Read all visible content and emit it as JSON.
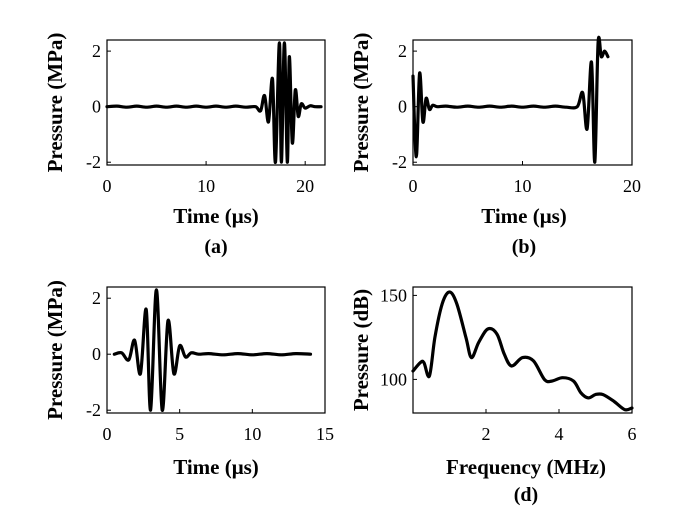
{
  "chart_data": [
    {
      "panel": "a",
      "type": "line",
      "caption": "(a)",
      "xlabel": "Time (μs)",
      "ylabel": "Pressure (MPa)",
      "xlim": [
        0,
        22
      ],
      "ylim": [
        -2.1,
        2.4
      ],
      "xticks": [
        0,
        10,
        20
      ],
      "xtick_labels": [
        "0",
        "10",
        "20"
      ],
      "yticks": [
        2,
        0,
        -2
      ],
      "ytick_labels": [
        "2",
        "0",
        "-2"
      ],
      "grid": false,
      "series": [
        {
          "x": [
            0,
            1,
            2,
            3,
            4,
            5,
            6,
            7,
            8,
            9,
            10,
            11,
            12,
            13,
            14,
            15,
            15.5,
            15.9,
            16.3,
            16.7,
            17.0,
            17.4,
            17.6,
            17.9,
            18.2,
            18.4,
            18.7,
            19.0,
            19.3,
            19.6,
            20.0,
            20.5,
            21.0,
            21.6
          ],
          "y": [
            0,
            0.02,
            -0.02,
            0.02,
            -0.02,
            0.02,
            -0.02,
            0.02,
            -0.02,
            0.02,
            -0.02,
            0.02,
            -0.02,
            0.02,
            -0.02,
            0.0,
            -0.15,
            0.4,
            -0.55,
            1.0,
            -2.0,
            2.3,
            -2.0,
            2.3,
            -2.0,
            1.8,
            -1.3,
            0.6,
            -0.35,
            0.1,
            -0.05,
            0.03,
            0.0,
            0.0
          ]
        }
      ]
    },
    {
      "panel": "b",
      "type": "line",
      "caption": "(b)",
      "xlabel": "Time (μs)",
      "ylabel": "Pressure (MPa)",
      "xlim": [
        0,
        20
      ],
      "ylim": [
        -2.1,
        2.4
      ],
      "xticks": [
        0,
        10,
        20
      ],
      "xtick_labels": [
        "0",
        "10",
        "20"
      ],
      "yticks": [
        2,
        0,
        -2
      ],
      "ytick_labels": [
        "2",
        "0",
        "-2"
      ],
      "grid": false,
      "series": [
        {
          "x": [
            0,
            0.3,
            0.6,
            0.9,
            1.2,
            1.5,
            1.8,
            2.2,
            3,
            4,
            5,
            6,
            7,
            8,
            9,
            10,
            11,
            12,
            13,
            14,
            15,
            15.5,
            15.9,
            16.3,
            16.6,
            16.9,
            17.2,
            17.5,
            17.8
          ],
          "y": [
            1.1,
            -1.8,
            1.2,
            -0.55,
            0.3,
            -0.1,
            0.05,
            0.0,
            0.02,
            -0.02,
            0.02,
            -0.02,
            0.02,
            -0.02,
            0.02,
            -0.02,
            0.02,
            -0.02,
            0.02,
            -0.02,
            0.0,
            0.5,
            -0.8,
            1.6,
            -2.0,
            2.3,
            1.8,
            2.0,
            1.8
          ]
        }
      ]
    },
    {
      "panel": "c",
      "type": "line",
      "caption": "",
      "xlabel": "Time (μs)",
      "ylabel": "Pressure (MPa)",
      "xlim": [
        0,
        15
      ],
      "ylim": [
        -2.1,
        2.4
      ],
      "xticks": [
        0,
        5,
        10,
        15
      ],
      "xtick_labels": [
        "0",
        "5",
        "10",
        "15"
      ],
      "yticks": [
        2,
        0,
        -2
      ],
      "ytick_labels": [
        "2",
        "0",
        "-2"
      ],
      "grid": false,
      "series": [
        {
          "x": [
            0.5,
            1.0,
            1.5,
            1.9,
            2.3,
            2.7,
            3.0,
            3.4,
            3.8,
            4.2,
            4.6,
            5.0,
            5.4,
            5.8,
            6.3,
            7,
            8,
            9,
            10,
            11,
            12,
            13,
            14
          ],
          "y": [
            0.0,
            0.05,
            -0.2,
            0.5,
            -0.7,
            1.6,
            -2.0,
            2.3,
            -2.0,
            1.2,
            -0.7,
            0.3,
            -0.1,
            0.05,
            0.0,
            0.02,
            -0.02,
            0.02,
            -0.02,
            0.02,
            -0.02,
            0.02,
            0.0
          ]
        }
      ]
    },
    {
      "panel": "d",
      "type": "line",
      "caption": "(d)",
      "xlabel": "Frequency (MHz)",
      "ylabel": "Pressure (dB)",
      "xlim": [
        0,
        6
      ],
      "ylim": [
        80,
        155
      ],
      "xticks": [
        2,
        4,
        6
      ],
      "xtick_labels": [
        "2",
        "4",
        "6"
      ],
      "yticks": [
        150,
        100
      ],
      "ytick_labels": [
        "150",
        "100"
      ],
      "grid": false,
      "series": [
        {
          "x": [
            0,
            0.2,
            0.3,
            0.45,
            0.6,
            0.8,
            1.0,
            1.2,
            1.45,
            1.6,
            1.8,
            2.05,
            2.3,
            2.5,
            2.7,
            3.0,
            3.3,
            3.6,
            3.8,
            4.1,
            4.4,
            4.6,
            4.8,
            5.0,
            5.2,
            5.5,
            5.8,
            6.0
          ],
          "y": [
            105,
            110,
            110,
            102,
            125,
            145,
            152,
            145,
            125,
            113,
            122,
            130,
            127,
            115,
            108,
            113,
            111,
            100,
            99,
            101,
            99,
            92,
            89,
            91,
            91,
            87,
            82,
            83
          ]
        }
      ]
    }
  ]
}
